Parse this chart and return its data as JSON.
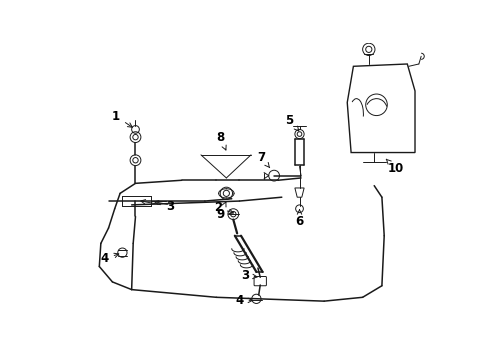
{
  "bg_color": "#ffffff",
  "line_color": "#1a1a1a",
  "figsize": [
    4.89,
    3.6
  ],
  "dpi": 100,
  "font_size": 8.5,
  "lw_main": 1.0,
  "lw_thin": 0.7,
  "lw_hose": 1.1
}
